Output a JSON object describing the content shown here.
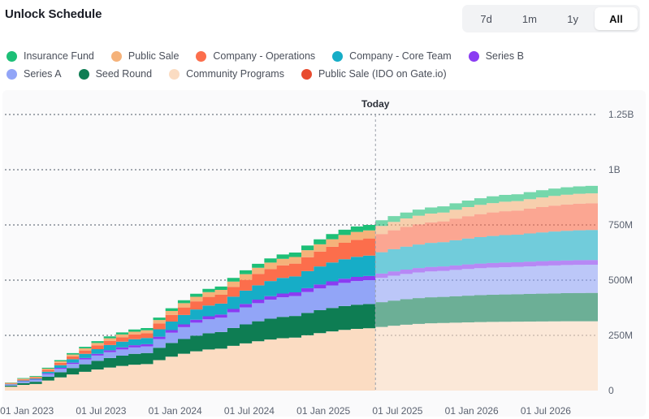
{
  "header": {
    "title": "Unlock Schedule"
  },
  "range_tabs": [
    {
      "label": "7d",
      "active": false
    },
    {
      "label": "1m",
      "active": false
    },
    {
      "label": "1y",
      "active": false
    },
    {
      "label": "All",
      "active": true
    }
  ],
  "chart_data": {
    "type": "area",
    "title": "Unlock Schedule",
    "stacked": true,
    "stepped": true,
    "x_unit": "months since 01 Dec 2022",
    "x_start_label": "01 Dec 2022",
    "x_range": [
      0,
      48
    ],
    "today_month": 30,
    "today_label": "Today",
    "y_range": [
      0,
      1250000000
    ],
    "y_ticks": [
      {
        "value": 0,
        "label": "0"
      },
      {
        "value": 250000000,
        "label": "250M"
      },
      {
        "value": 500000000,
        "label": "500M"
      },
      {
        "value": 750000000,
        "label": "750M"
      },
      {
        "value": 1000000000,
        "label": "1B"
      },
      {
        "value": 1250000000,
        "label": "1.25B"
      }
    ],
    "x_ticks": [
      {
        "month": 1,
        "label": "01 Jan 2023"
      },
      {
        "month": 7,
        "label": "01 Jul 2023"
      },
      {
        "month": 13,
        "label": "01 Jan 2024"
      },
      {
        "month": 19,
        "label": "01 Jul 2024"
      },
      {
        "month": 25,
        "label": "01 Jan 2025"
      },
      {
        "month": 31,
        "label": "01 Jul 2025"
      },
      {
        "month": 37,
        "label": "01 Jan 2026"
      },
      {
        "month": 43,
        "label": "01 Jul 2026"
      }
    ],
    "series": [
      {
        "name": "Community Programs",
        "color": "#fbdcc2",
        "amounts": [
          6000000.0,
          30000000.0,
          120000000.0,
          190000000.0,
          240000000.0,
          282000000.0,
          306000000.0,
          312000000.0,
          314000000.0
        ]
      },
      {
        "name": "Seed Round",
        "color": "#0e7d53",
        "amounts": [
          0,
          10000000.0,
          50000000.0,
          75000000.0,
          98000000.0,
          110000000.0,
          118000000.0,
          124000000.0,
          128000000.0
        ]
      },
      {
        "name": "Series A",
        "color": "#92a5f7",
        "amounts": [
          0,
          8000000.0,
          30000000.0,
          65000000.0,
          90000000.0,
          108000000.0,
          118000000.0,
          124000000.0,
          128000000.0
        ]
      },
      {
        "name": "Series B",
        "color": "#8a3cf2",
        "amounts": [
          0,
          2000000.0,
          10000000.0,
          14000000.0,
          17000000.0,
          19000000.0,
          20000000.0,
          21000000.0,
          21000000.0
        ]
      },
      {
        "name": "Company - Core Team",
        "color": "#16adc7",
        "amounts": [
          0,
          4000000.0,
          28000000.0,
          50000000.0,
          72000000.0,
          92000000.0,
          110000000.0,
          125000000.0,
          136000000.0
        ]
      },
      {
        "name": "Company - Operations",
        "color": "#fc6e4c",
        "amounts": [
          2000000.0,
          5000000.0,
          22000000.0,
          40000000.0,
          58000000.0,
          78000000.0,
          94000000.0,
          109000000.0,
          121000000.0
        ]
      },
      {
        "name": "Public Sale",
        "color": "#f5b27a",
        "amounts": [
          2000000.0,
          4000000.0,
          13000000.0,
          22000000.0,
          30000000.0,
          36000000.0,
          40000000.0,
          43000000.0,
          45000000.0
        ]
      },
      {
        "name": "Insurance Fund",
        "color": "#1dbf77",
        "amounts": [
          0,
          3000000.0,
          10000000.0,
          15000000.0,
          20000000.0,
          25000000.0,
          28000000.0,
          31000000.0,
          34000000.0
        ]
      },
      {
        "name": "Public Sale (IDO on Gate.io)",
        "color": "#e84b2f",
        "amounts": [
          0,
          0,
          0,
          0,
          0,
          0,
          0,
          0,
          0
        ]
      }
    ],
    "series_months": [
      0,
      3,
      12,
      18,
      24,
      30,
      36,
      42,
      48
    ]
  },
  "legend": {
    "rows": [
      [
        {
          "label": "Insurance Fund",
          "color": "#1dbf77"
        },
        {
          "label": "Public Sale",
          "color": "#f5b27a"
        },
        {
          "label": "Company - Operations",
          "color": "#fc6e4c"
        },
        {
          "label": "Company - Core Team",
          "color": "#16adc7"
        },
        {
          "label": "Series B",
          "color": "#8a3cf2"
        }
      ],
      [
        {
          "label": "Series A",
          "color": "#92a5f7"
        },
        {
          "label": "Seed Round",
          "color": "#0e7d53"
        },
        {
          "label": "Community Programs",
          "color": "#fbdcc2"
        },
        {
          "label": "Public Sale (IDO on Gate.io)",
          "color": "#e84b2f"
        }
      ]
    ]
  }
}
